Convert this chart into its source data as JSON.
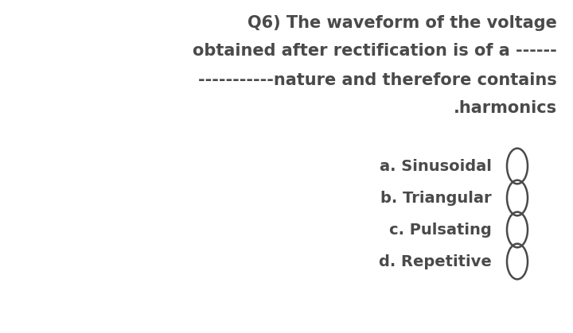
{
  "background_color": "#ffffff",
  "question_lines": [
    "Q6) The waveform of the voltage",
    "obtained after rectification is of a ------",
    "-----------nature and therefore contains",
    ".harmonics"
  ],
  "options": [
    "a. Sinusoidal",
    "b. Triangular",
    "c. Pulsating",
    "d. Repetitive"
  ],
  "text_color": "#4a4a4a",
  "font_size_question": 15,
  "font_size_options": 14,
  "fig_width": 7.2,
  "fig_height": 4.19,
  "dpi": 100
}
